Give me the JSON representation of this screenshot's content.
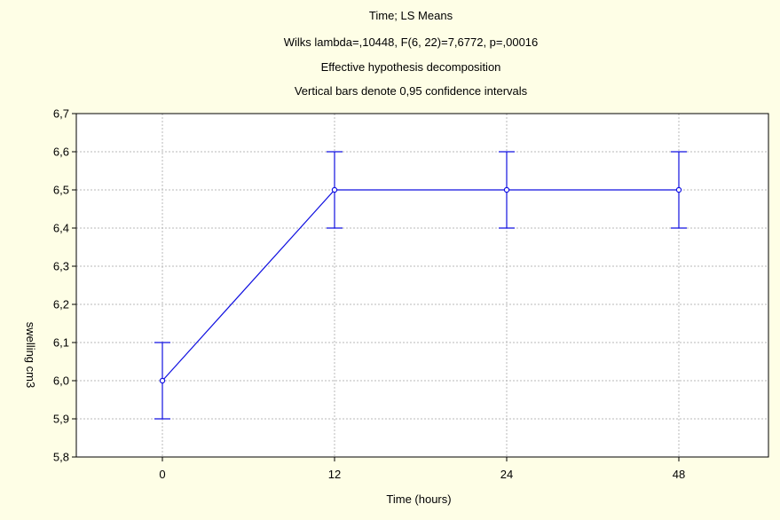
{
  "chart_data": {
    "type": "line",
    "title": "Time; LS Means",
    "subtitle_lines": [
      "Wilks lambda=,10448, F(6, 22)=7,6772, p=,00016",
      "Effective hypothesis decomposition",
      "Vertical bars denote 0,95 confidence intervals"
    ],
    "xlabel": "Time (hours)",
    "ylabel": "swelling cm3",
    "categories": [
      "0",
      "12",
      "24",
      "48"
    ],
    "series": [
      {
        "values": [
          6.0,
          6.5,
          6.5,
          6.5
        ],
        "ci_lower": [
          5.9,
          6.4,
          6.4,
          6.4
        ],
        "ci_upper": [
          6.1,
          6.6,
          6.6,
          6.6
        ]
      }
    ],
    "ylim": [
      5.8,
      6.7
    ],
    "yticks": [
      "5,8",
      "5,9",
      "6,0",
      "6,1",
      "6,2",
      "6,3",
      "6,4",
      "6,5",
      "6,6",
      "6,7"
    ],
    "grid": true,
    "line_color": "#1010e0",
    "background_color": "#fefee6",
    "plot_background_color": "#ffffff"
  }
}
